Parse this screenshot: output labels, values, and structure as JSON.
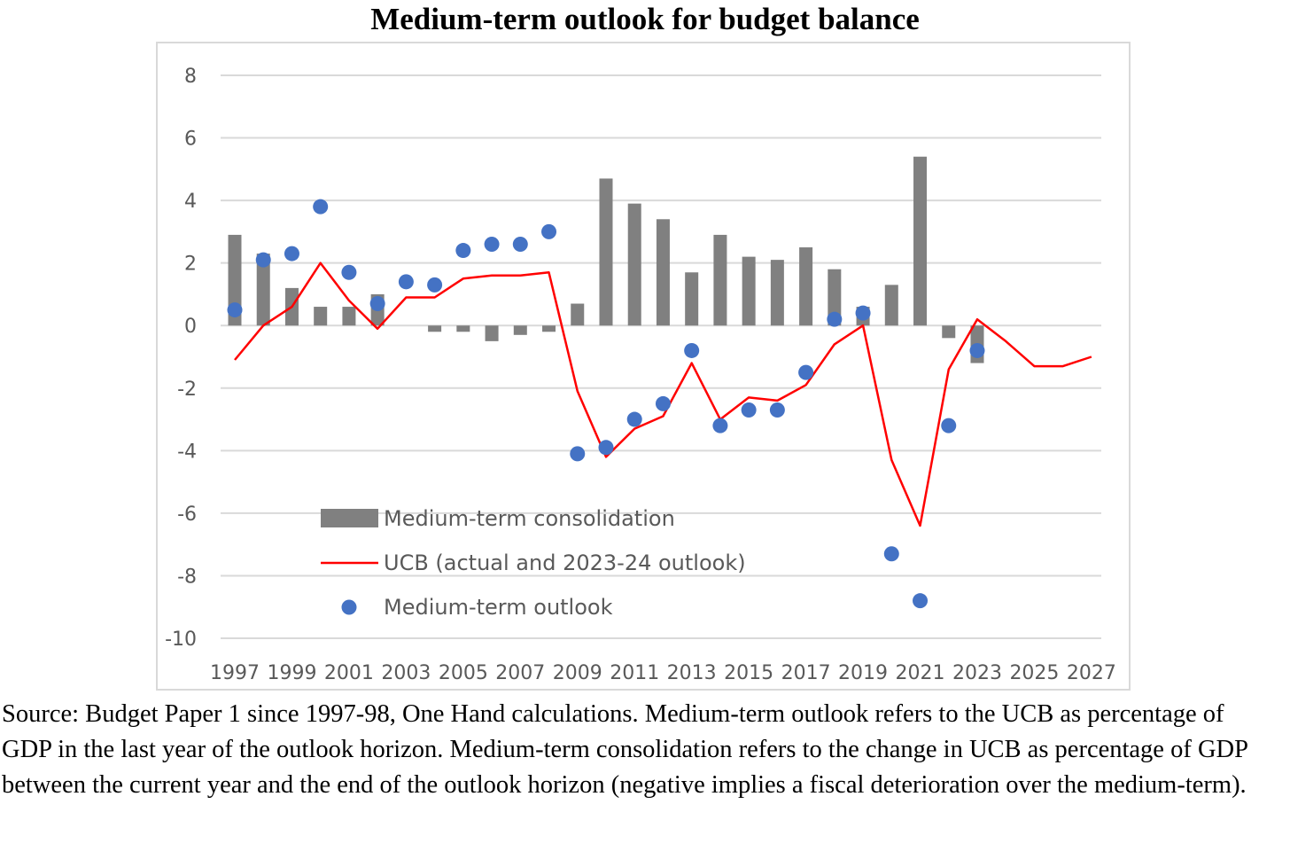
{
  "title": "Medium-term outlook for budget balance",
  "caption": "Source: Budget Paper 1 since 1997-98, One Hand calculations. Medium-term outlook refers to the UCB as percentage of GDP in the last year of the outlook horizon. Medium-term consolidation refers to the change in UCB as percentage of GDP between the current year and the end of the outlook horizon (negative implies a fiscal deterioration over the medium-term).",
  "chart_data": {
    "type": "bar",
    "title": "Medium-term outlook for budget balance",
    "xlabel": "",
    "ylabel": "",
    "ylim": [
      -10,
      8
    ],
    "yticks": [
      8,
      6,
      4,
      2,
      0,
      -2,
      -4,
      -6,
      -8,
      -10
    ],
    "x_labels": [
      "1997",
      "1999",
      "2001",
      "2003",
      "2005",
      "2007",
      "2009",
      "2011",
      "2013",
      "2015",
      "2017",
      "2019",
      "2021",
      "2023",
      "2025",
      "2027"
    ],
    "categories": [
      1997,
      1998,
      1999,
      2000,
      2001,
      2002,
      2003,
      2004,
      2005,
      2006,
      2007,
      2008,
      2009,
      2010,
      2011,
      2012,
      2013,
      2014,
      2015,
      2016,
      2017,
      2018,
      2019,
      2020,
      2021,
      2022,
      2023,
      2024,
      2025,
      2026,
      2027
    ],
    "grid": true,
    "legend_position": "bottom-left inside",
    "series": [
      {
        "name": "Medium-term consolidation",
        "kind": "bar",
        "color": "#808080",
        "values": [
          2.9,
          2.3,
          1.2,
          0.6,
          0.6,
          1.0,
          0.0,
          -0.2,
          -0.2,
          -0.5,
          -0.3,
          -0.2,
          0.7,
          4.7,
          3.9,
          3.4,
          1.7,
          2.9,
          2.2,
          2.1,
          2.5,
          1.8,
          0.6,
          1.3,
          5.4,
          -0.4,
          -1.2,
          null,
          null,
          null,
          null
        ]
      },
      {
        "name": "UCB (actual and 2023-24 outlook)",
        "kind": "line",
        "color": "#ff0000",
        "values": [
          -1.1,
          0.0,
          0.6,
          2.0,
          0.8,
          -0.1,
          0.9,
          0.9,
          1.5,
          1.6,
          1.6,
          1.7,
          -2.1,
          -4.2,
          -3.3,
          -2.9,
          -1.2,
          -3.0,
          -2.3,
          -2.4,
          -1.9,
          -0.6,
          0.0,
          -4.3,
          -6.4,
          -1.4,
          0.2,
          -0.5,
          -1.3,
          -1.3,
          -1.0
        ]
      },
      {
        "name": "Medium-term outlook",
        "kind": "scatter",
        "color": "#4472c4",
        "values": [
          0.5,
          2.1,
          2.3,
          3.8,
          1.7,
          0.7,
          1.4,
          1.3,
          2.4,
          2.6,
          2.6,
          3.0,
          -4.1,
          -3.9,
          -3.0,
          -2.5,
          -0.8,
          -3.2,
          -2.7,
          -2.7,
          -1.5,
          0.2,
          0.4,
          -7.3,
          -8.8,
          -3.2,
          -0.8,
          null,
          null,
          null,
          null
        ]
      }
    ]
  }
}
